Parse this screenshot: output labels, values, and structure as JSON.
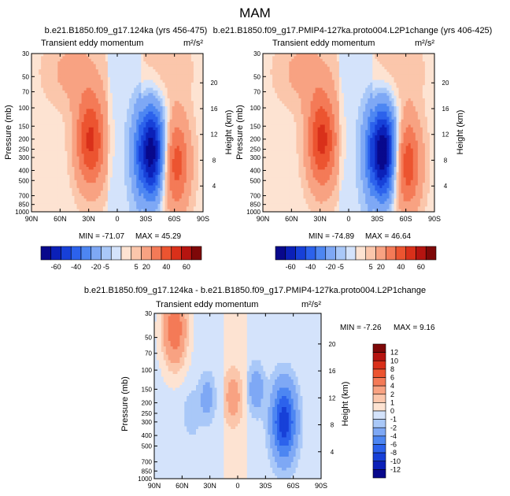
{
  "figure_title": "MAM",
  "scale_bars": {
    "anomaly": [
      "-60",
      "-40",
      "-20",
      "-5",
      "5",
      "20",
      "40",
      "60"
    ],
    "difference": [
      "12",
      "10",
      "8",
      "6",
      "4",
      "2",
      "1",
      "0",
      "-1",
      "-2",
      "-4",
      "-6",
      "-8",
      "-10",
      "-12"
    ]
  },
  "colors": {
    "anomaly": [
      "#08088c",
      "#0b20b8",
      "#1740d8",
      "#2c62ec",
      "#4d86f2",
      "#7ea8f5",
      "#a9c8f8",
      "#d4e3fb",
      "#fde3d2",
      "#fbc6ab",
      "#f8a282",
      "#f47a57",
      "#ec5430",
      "#d9301a",
      "#b51410",
      "#7e0808"
    ],
    "difference": [
      "#7e0808",
      "#b51410",
      "#d9301a",
      "#ec5430",
      "#f47a57",
      "#f8a282",
      "#fbc6ab",
      "#fde3d2",
      "#d4e3fb",
      "#a9c8f8",
      "#7ea8f5",
      "#4d86f2",
      "#2c62ec",
      "#1740d8",
      "#0b20b8",
      "#08088c"
    ]
  },
  "chart_data": [
    {
      "type": "heatmap",
      "id": "panel-1",
      "title": "b.e21.B1850.f09_g17.124ka (yrs 456-475)",
      "subtitle_left": "Transient eddy momentum",
      "units": "m²/s²",
      "xlabel": "",
      "ylabel": "Pressure (mb)",
      "ylabel_right": "Height (km)",
      "x_ticks": [
        "90N",
        "60N",
        "30N",
        "0",
        "30S",
        "60S",
        "90S"
      ],
      "x_tick_values": [
        90,
        60,
        30,
        0,
        -30,
        -60,
        -90
      ],
      "y_ticks": [
        "30",
        "50",
        "70",
        "100",
        "150",
        "200",
        "250",
        "300",
        "400",
        "500",
        "700",
        "850",
        "1000"
      ],
      "y_tick_values": [
        30,
        50,
        70,
        100,
        150,
        200,
        250,
        300,
        400,
        500,
        700,
        850,
        1000
      ],
      "height_ticks": [
        "4",
        "8",
        "12",
        "16",
        "20"
      ],
      "height_tick_values": [
        4,
        8,
        12,
        16,
        20
      ],
      "ylim": [
        1000,
        30
      ],
      "xlim": [
        90,
        -90
      ],
      "min_label": "MIN = -71.07",
      "max_label": "MAX =  45.29",
      "min": -71.07,
      "max": 45.29,
      "contour_levels": [
        -60,
        -50,
        -40,
        -30,
        -20,
        -10,
        -5,
        0,
        5,
        10,
        20,
        30,
        40,
        50,
        60
      ],
      "features": [
        {
          "lat": 28,
          "p": 205,
          "value": 40
        },
        {
          "lat": -36,
          "p": 270,
          "value": -71
        },
        {
          "lat": -60,
          "p": 340,
          "value": 36
        },
        {
          "lat": 48,
          "p": 45,
          "value": 10
        },
        {
          "lat": -50,
          "p": 40,
          "value": 7
        }
      ]
    },
    {
      "type": "heatmap",
      "id": "panel-2",
      "title": "b.e21.B1850.f09_g17.PMIP4-127ka.proto004.L2P1change (yrs 406-425)",
      "subtitle_left": "Transient eddy momentum",
      "units": "m²/s²",
      "xlabel": "",
      "ylabel": "Pressure (mb)",
      "ylabel_right": "Height (km)",
      "x_ticks": [
        "90N",
        "60N",
        "30N",
        "0",
        "30S",
        "60S",
        "90S"
      ],
      "x_tick_values": [
        90,
        60,
        30,
        0,
        -30,
        -60,
        -90
      ],
      "y_ticks": [
        "30",
        "50",
        "70",
        "100",
        "150",
        "200",
        "250",
        "300",
        "400",
        "500",
        "700",
        "850",
        "1000"
      ],
      "y_tick_values": [
        30,
        50,
        70,
        100,
        150,
        200,
        250,
        300,
        400,
        500,
        700,
        850,
        1000
      ],
      "height_ticks": [
        "4",
        "8",
        "12",
        "16",
        "20"
      ],
      "height_tick_values": [
        4,
        8,
        12,
        16,
        20
      ],
      "ylim": [
        1000,
        30
      ],
      "xlim": [
        90,
        -90
      ],
      "min_label": "MIN = -74.89",
      "max_label": "MAX =  46.64",
      "min": -74.89,
      "max": 46.64,
      "contour_levels": [
        -60,
        -50,
        -40,
        -30,
        -20,
        -10,
        -5,
        0,
        5,
        10,
        20,
        30,
        40,
        50,
        60
      ],
      "features": [
        {
          "lat": 28,
          "p": 205,
          "value": 41
        },
        {
          "lat": -36,
          "p": 270,
          "value": -75
        },
        {
          "lat": -60,
          "p": 340,
          "value": 38
        },
        {
          "lat": 48,
          "p": 45,
          "value": 10
        },
        {
          "lat": -50,
          "p": 40,
          "value": 7
        }
      ]
    },
    {
      "type": "heatmap",
      "id": "panel-3",
      "title": "b.e21.B1850.f09_g17.124ka - b.e21.B1850.f09_g17.PMIP4-127ka.proto004.L2P1change",
      "subtitle_left": "Transient eddy momentum",
      "units": "m²/s²",
      "xlabel": "",
      "ylabel": "Pressure (mb)",
      "ylabel_right": "Height (km)",
      "x_ticks": [
        "90N",
        "60N",
        "30N",
        "0",
        "30S",
        "60S",
        "90S"
      ],
      "x_tick_values": [
        90,
        60,
        30,
        0,
        -30,
        -60,
        -90
      ],
      "y_ticks": [
        "30",
        "50",
        "70",
        "100",
        "150",
        "200",
        "250",
        "300",
        "400",
        "500",
        "700",
        "850",
        "1000"
      ],
      "y_tick_values": [
        30,
        50,
        70,
        100,
        150,
        200,
        250,
        300,
        400,
        500,
        700,
        850,
        1000
      ],
      "height_ticks": [
        "4",
        "8",
        "12",
        "16",
        "20"
      ],
      "height_tick_values": [
        4,
        8,
        12,
        16,
        20
      ],
      "ylim": [
        1000,
        30
      ],
      "xlim": [
        90,
        -90
      ],
      "min_label": "MIN =  -7.26",
      "max_label": "MAX =   9.16",
      "min": -7.26,
      "max": 9.16,
      "contour_levels": [
        -12,
        -10,
        -8,
        -6,
        -4,
        -2,
        -1,
        0,
        1,
        2,
        4,
        6,
        8,
        10,
        12
      ],
      "features": [
        {
          "lat": 68,
          "p": 42,
          "value": -6
        },
        {
          "lat": -50,
          "p": 300,
          "value": 9
        },
        {
          "lat": -20,
          "p": 150,
          "value": 3
        },
        {
          "lat": 33,
          "p": 180,
          "value": 2.5
        },
        {
          "lat": 5,
          "p": 180,
          "value": -2.5
        },
        {
          "lat": 50,
          "p": 250,
          "value": 1.5
        }
      ]
    }
  ]
}
